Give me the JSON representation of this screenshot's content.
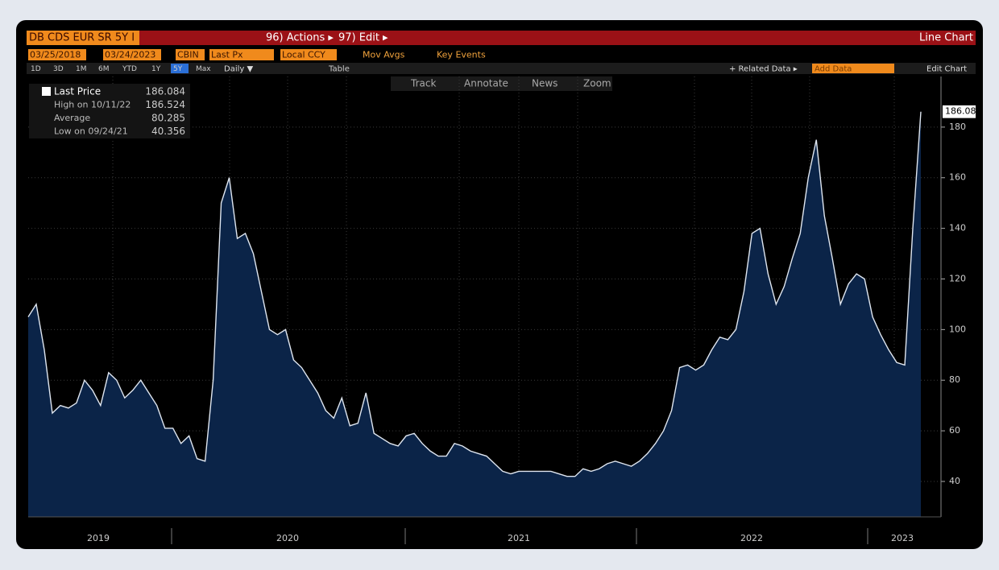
{
  "header": {
    "security": "DB CDS EUR SR 5Y I",
    "actions": "96) Actions ▸",
    "edit": "97) Edit ▸",
    "chart_type": "Line Chart"
  },
  "settings": {
    "start": "03/25/2018",
    "end": "03/24/2023",
    "source": "CBIN",
    "field": "Last Px",
    "currency": "Local CCY",
    "mov_avgs": "Mov Avgs",
    "key_events": "Key Events"
  },
  "buttons": {
    "ranges": [
      "1D",
      "3D",
      "1M",
      "6M",
      "YTD",
      "1Y",
      "5Y",
      "Max"
    ],
    "period": "Daily ▼",
    "table": "Table",
    "related": "+ Related Data ▸",
    "add": "Add Data",
    "edit_chart": "Edit Chart"
  },
  "tools": [
    "Track",
    "Annotate",
    "News",
    "Zoom"
  ],
  "chart_data": {
    "type": "line",
    "legend": [
      {
        "name": "Last Price",
        "value": "186.084"
      },
      {
        "name": "High on 10/11/22",
        "value": "186.524"
      },
      {
        "name": "Average",
        "value": "80.285"
      },
      {
        "name": "Low on 09/24/21",
        "value": "40.356"
      }
    ],
    "xticks": [
      "2019",
      "2020",
      "2021",
      "2022",
      "2023"
    ],
    "ylim": [
      26,
      200
    ],
    "yticks": [
      40,
      60,
      80,
      100,
      120,
      140,
      160,
      180
    ],
    "grid": true,
    "series": [
      {
        "name": "Last Price",
        "color": "#dfe6f0",
        "fill": "#0b2448",
        "values": [
          105,
          110,
          92,
          67,
          70,
          69,
          71,
          80,
          76,
          70,
          83,
          80,
          73,
          76,
          80,
          75,
          70,
          61,
          61,
          55,
          58,
          49,
          48,
          80,
          150,
          160,
          136,
          138,
          130,
          115,
          100,
          98,
          100,
          88,
          85,
          80,
          75,
          68,
          65,
          73,
          62,
          63,
          75,
          59,
          57,
          55,
          54,
          58,
          59,
          55,
          52,
          50,
          50,
          55,
          54,
          52,
          51,
          50,
          47,
          44,
          43,
          44,
          44,
          44,
          44,
          44,
          43,
          42,
          42,
          45,
          44,
          45,
          47,
          48,
          47,
          46,
          48,
          51,
          55,
          60,
          68,
          85,
          86,
          84,
          86,
          92,
          97,
          96,
          100,
          115,
          138,
          140,
          122,
          110,
          117,
          128,
          138,
          160,
          175,
          145,
          128,
          110,
          118,
          122,
          120,
          105,
          98,
          92,
          87,
          86,
          140,
          186.084
        ]
      }
    ]
  }
}
